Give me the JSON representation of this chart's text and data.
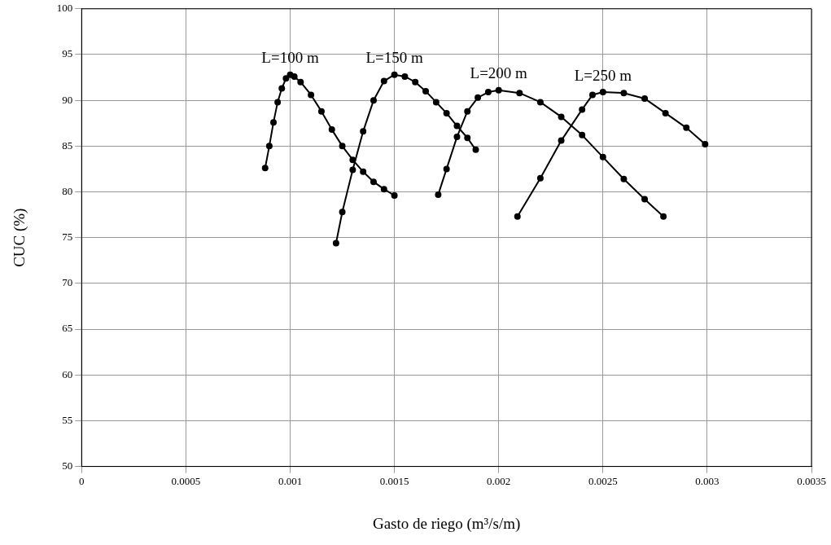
{
  "chart_data": {
    "type": "line",
    "xlabel": "Gasto de riego (m³/s/m)",
    "ylabel": "CUC (%)",
    "xlim": [
      0,
      0.0035
    ],
    "xticks": [
      0,
      0.0005,
      0.001,
      0.0015,
      0.002,
      0.0025,
      0.003,
      0.0035
    ],
    "ylim": [
      50,
      100
    ],
    "yticks": [
      50,
      55,
      60,
      65,
      70,
      75,
      80,
      85,
      90,
      95,
      100
    ],
    "grid": true,
    "legend": false,
    "marker": "circle",
    "line_style": "solid",
    "series": [
      {
        "name": "L=100 m",
        "color": "#000000",
        "x": [
          0.00088,
          0.0009,
          0.00092,
          0.00094,
          0.00096,
          0.00098,
          0.001,
          0.00102,
          0.00105,
          0.0011,
          0.00115,
          0.0012,
          0.00125,
          0.0013,
          0.00135,
          0.0014,
          0.00145,
          0.0015
        ],
        "values": [
          82.6,
          85,
          87.6,
          89.8,
          91.3,
          92.4,
          92.8,
          92.6,
          92,
          90.6,
          88.8,
          86.8,
          85,
          83.5,
          82.2,
          81.1,
          80.3,
          79.6
        ]
      },
      {
        "name": "L=150 m",
        "color": "#000000",
        "x": [
          0.00122,
          0.00125,
          0.0013,
          0.00135,
          0.0014,
          0.00145,
          0.0015,
          0.00155,
          0.0016,
          0.00165,
          0.0017,
          0.00175,
          0.0018,
          0.00185,
          0.00189
        ],
        "values": [
          74.4,
          77.8,
          82.4,
          86.6,
          90,
          92.1,
          92.8,
          92.6,
          92,
          91,
          89.8,
          88.6,
          87.2,
          85.9,
          84.6
        ]
      },
      {
        "name": "L=200 m",
        "color": "#000000",
        "x": [
          0.00171,
          0.00175,
          0.0018,
          0.00185,
          0.0019,
          0.00195,
          0.002,
          0.0021,
          0.0022,
          0.0023,
          0.0024,
          0.0025,
          0.0026,
          0.0027,
          0.00279
        ],
        "values": [
          79.7,
          82.5,
          86,
          88.8,
          90.3,
          90.9,
          91.1,
          90.8,
          89.8,
          88.2,
          86.2,
          83.8,
          81.4,
          79.2,
          77.3
        ]
      },
      {
        "name": "L=250 m",
        "color": "#000000",
        "x": [
          0.00209,
          0.0022,
          0.0023,
          0.0024,
          0.00245,
          0.0025,
          0.0026,
          0.0027,
          0.0028,
          0.0029,
          0.00299
        ],
        "values": [
          77.3,
          81.5,
          85.6,
          89,
          90.6,
          90.9,
          90.8,
          90.2,
          88.6,
          87,
          85.2
        ]
      }
    ]
  }
}
